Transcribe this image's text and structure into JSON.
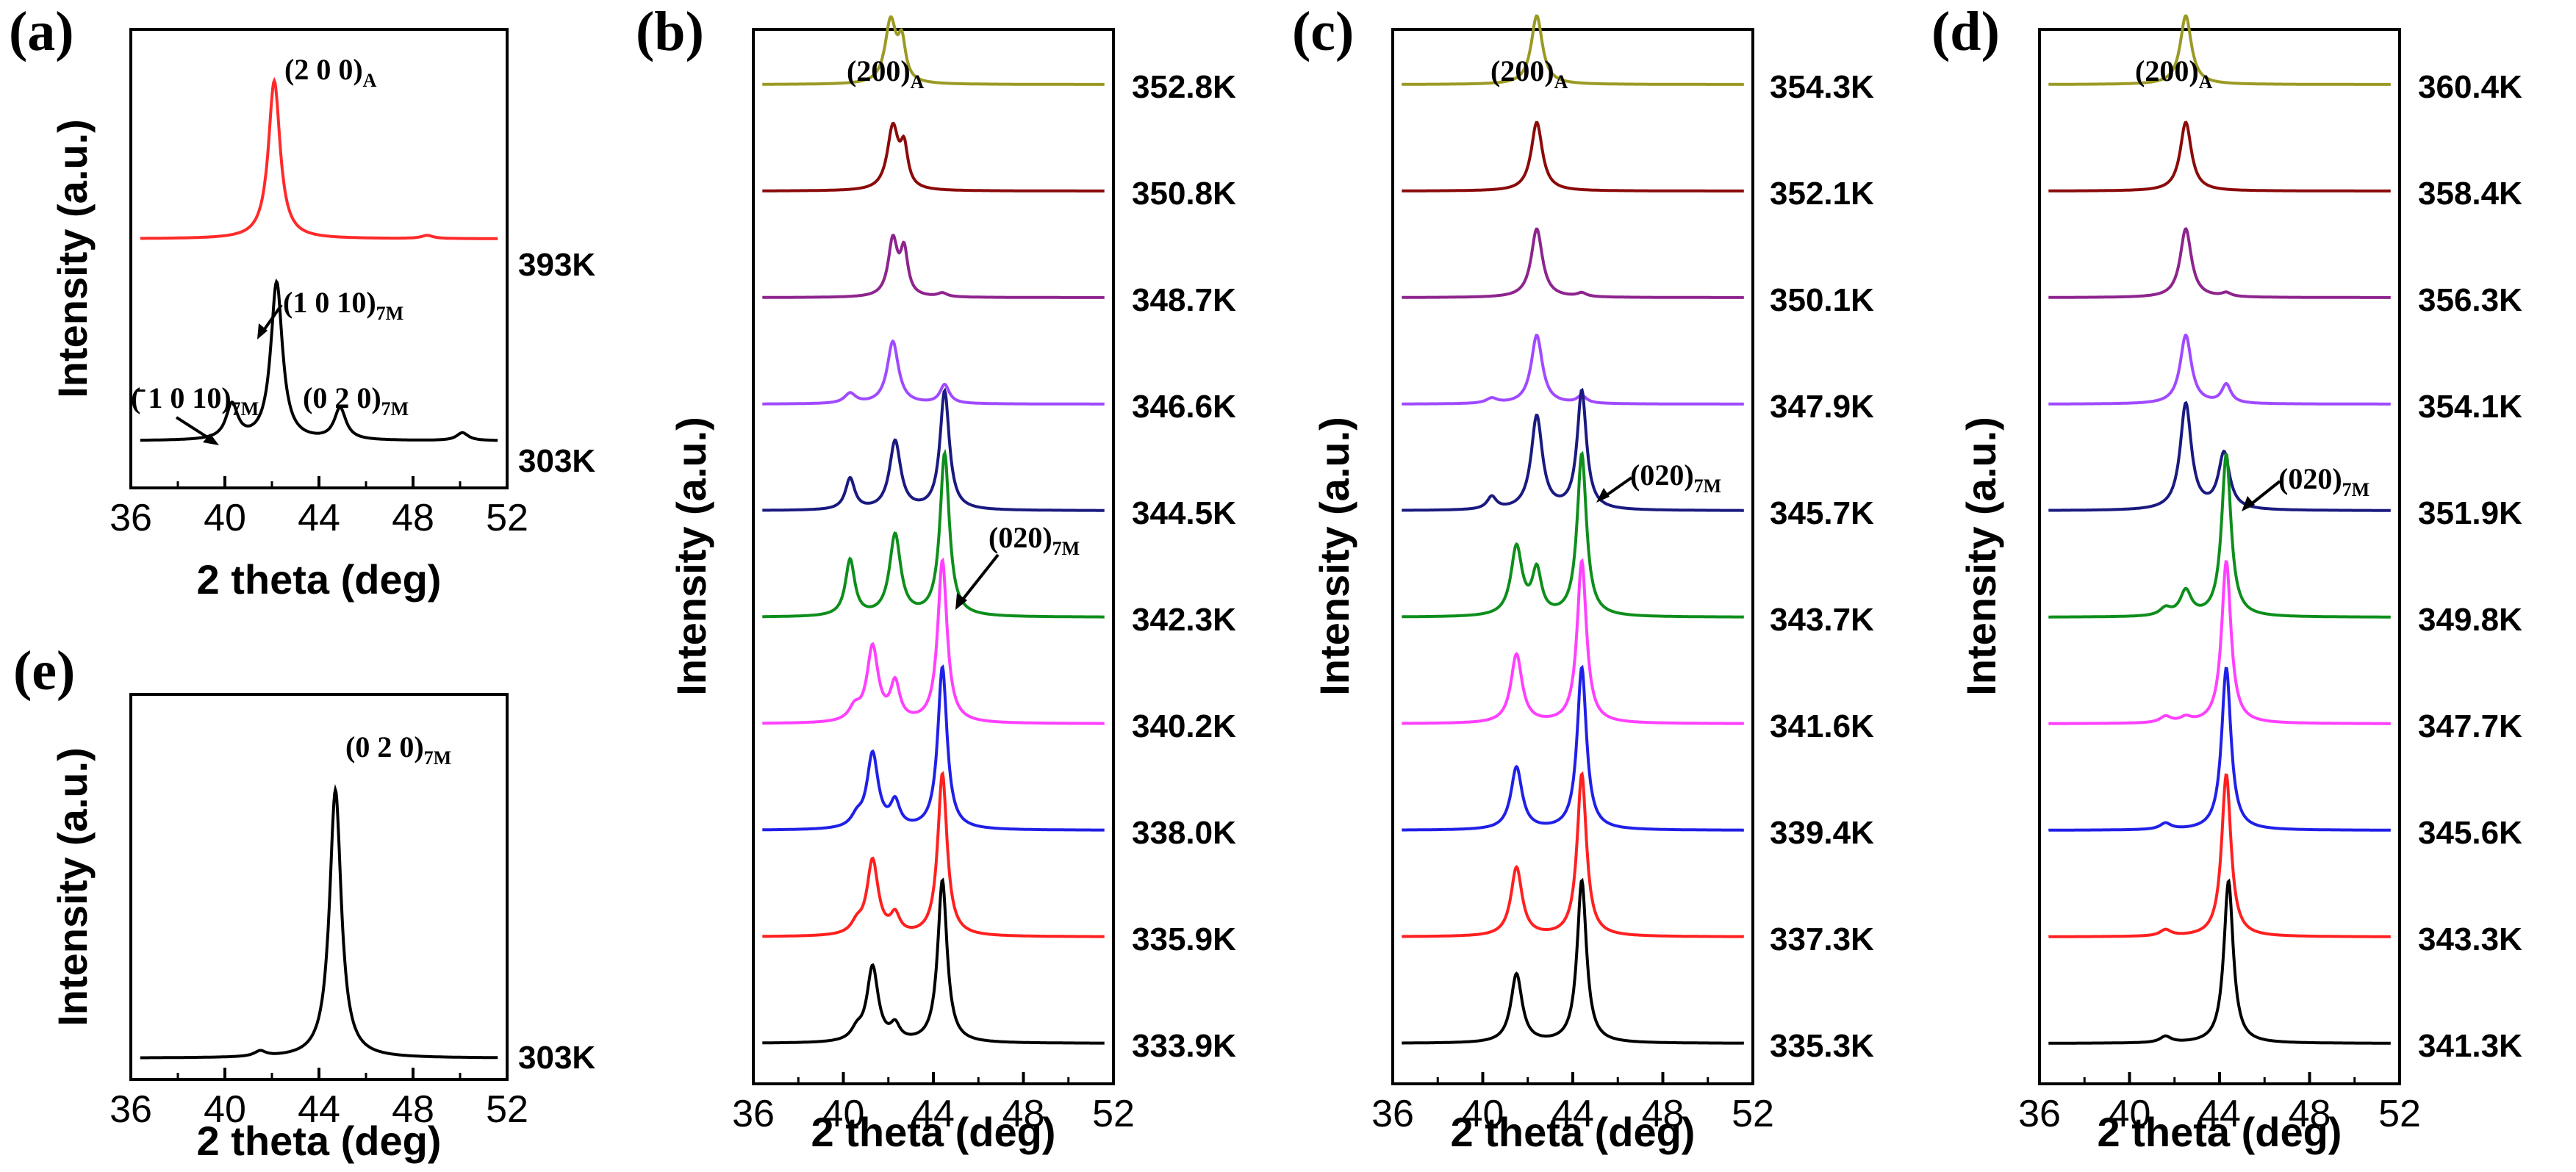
{
  "chart_data": [
    {
      "id": "a",
      "type": "line",
      "panel_label": "(a)",
      "xlabel": "2 theta (deg)",
      "ylabel": "Intensity (a.u.)",
      "xlim": [
        36,
        52
      ],
      "xticks": [
        "36",
        "40",
        "44",
        "48",
        "52"
      ],
      "series": [
        {
          "name": "393K",
          "color": "#ff2a2a",
          "peaks": [
            [
              42.1,
              1.0,
              0.3
            ],
            [
              48.6,
              0.02,
              0.3
            ]
          ]
        },
        {
          "name": "303K",
          "color": "#000000",
          "peaks": [
            [
              42.2,
              1.0,
              0.3
            ],
            [
              40.3,
              0.22,
              0.3
            ],
            [
              44.9,
              0.2,
              0.3
            ],
            [
              50.1,
              0.05,
              0.3
            ]
          ]
        }
      ],
      "annotations": [
        {
          "text": "(2 0 0)",
          "sub": "A"
        },
        {
          "text": "(1 0 10)",
          "sub": "7M"
        },
        {
          "text": "(̄ 1 0 10)",
          "sub": "7M"
        },
        {
          "text": "(0 2 0)",
          "sub": "7M"
        }
      ]
    },
    {
      "id": "e",
      "type": "line",
      "panel_label": "(e)",
      "xlabel": "2 theta (deg)",
      "ylabel": "Intensity (a.u.)",
      "xlim": [
        36,
        52
      ],
      "xticks": [
        "36",
        "40",
        "44",
        "48",
        "52"
      ],
      "series": [
        {
          "name": "303K",
          "color": "#000000",
          "peaks": [
            [
              44.7,
              1.0,
              0.3
            ],
            [
              41.5,
              0.02,
              0.3
            ]
          ]
        }
      ],
      "annotations": [
        {
          "text": "(0 2 0)",
          "sub": "7M"
        }
      ]
    },
    {
      "id": "b",
      "type": "line",
      "panel_label": "(b)",
      "xlabel": "2 theta (deg)",
      "ylabel": "Intensity (a.u.)",
      "xlim": [
        36,
        52
      ],
      "xticks": [
        "36",
        "40",
        "44",
        "48",
        "52"
      ],
      "series": [
        {
          "name": "352.8K",
          "color": "#9a9a24",
          "peaks": [
            [
              42.1,
              0.5,
              0.3
            ],
            [
              42.6,
              0.3,
              0.2
            ]
          ]
        },
        {
          "name": "350.8K",
          "color": "#8b0a0a",
          "peaks": [
            [
              42.2,
              0.5,
              0.3
            ],
            [
              42.7,
              0.3,
              0.2
            ]
          ]
        },
        {
          "name": "348.7K",
          "color": "#8e248e",
          "peaks": [
            [
              42.2,
              0.45,
              0.25
            ],
            [
              42.7,
              0.35,
              0.2
            ],
            [
              44.4,
              0.03,
              0.25
            ]
          ]
        },
        {
          "name": "346.6K",
          "color": "#a04aff",
          "peaks": [
            [
              42.2,
              0.5,
              0.3
            ],
            [
              40.3,
              0.08,
              0.3
            ],
            [
              44.5,
              0.15,
              0.25
            ]
          ]
        },
        {
          "name": "344.5K",
          "color": "#1a1a80",
          "peaks": [
            [
              40.3,
              0.25,
              0.25
            ],
            [
              42.3,
              0.55,
              0.3
            ],
            [
              44.5,
              0.95,
              0.25
            ]
          ]
        },
        {
          "name": "342.3K",
          "color": "#0e8e1c",
          "peaks": [
            [
              40.3,
              0.45,
              0.25
            ],
            [
              42.3,
              0.65,
              0.3
            ],
            [
              44.5,
              1.3,
              0.25
            ]
          ]
        },
        {
          "name": "340.2K",
          "color": "#ff40ff",
          "peaks": [
            [
              41.3,
              0.6,
              0.3
            ],
            [
              42.3,
              0.3,
              0.25
            ],
            [
              44.4,
              1.3,
              0.25
            ],
            [
              40.5,
              0.1,
              0.3
            ]
          ]
        },
        {
          "name": "338.0K",
          "color": "#2020e8",
          "peaks": [
            [
              41.3,
              0.6,
              0.3
            ],
            [
              42.3,
              0.2,
              0.25
            ],
            [
              44.4,
              1.3,
              0.25
            ],
            [
              40.6,
              0.08,
              0.3
            ]
          ]
        },
        {
          "name": "335.9K",
          "color": "#ff2020",
          "peaks": [
            [
              41.3,
              0.6,
              0.3
            ],
            [
              42.3,
              0.15,
              0.25
            ],
            [
              44.4,
              1.3,
              0.25
            ],
            [
              40.6,
              0.08,
              0.3
            ]
          ]
        },
        {
          "name": "333.9K",
          "color": "#000000",
          "peaks": [
            [
              41.3,
              0.6,
              0.3
            ],
            [
              42.3,
              0.12,
              0.25
            ],
            [
              44.4,
              1.3,
              0.25
            ],
            [
              40.6,
              0.08,
              0.3
            ]
          ]
        }
      ],
      "annotations": [
        {
          "text": "(200)",
          "sub": "A"
        },
        {
          "text": "(020)",
          "sub": "7M"
        }
      ]
    },
    {
      "id": "c",
      "type": "line",
      "panel_label": "(c)",
      "xlabel": "2 theta (deg)",
      "ylabel": "Intensity (a.u.)",
      "xlim": [
        36,
        52
      ],
      "xticks": [
        "36",
        "40",
        "44",
        "48",
        "52"
      ],
      "series": [
        {
          "name": "354.3K",
          "color": "#9a9a24",
          "peaks": [
            [
              42.4,
              0.55,
              0.3
            ]
          ]
        },
        {
          "name": "352.1K",
          "color": "#8b0a0a",
          "peaks": [
            [
              42.4,
              0.55,
              0.3
            ]
          ]
        },
        {
          "name": "350.1K",
          "color": "#8e248e",
          "peaks": [
            [
              42.4,
              0.55,
              0.3
            ],
            [
              44.4,
              0.03,
              0.25
            ]
          ]
        },
        {
          "name": "347.9K",
          "color": "#a04aff",
          "peaks": [
            [
              42.4,
              0.55,
              0.3
            ],
            [
              44.4,
              0.06,
              0.25
            ],
            [
              40.4,
              0.04,
              0.3
            ]
          ]
        },
        {
          "name": "345.7K",
          "color": "#1a1a80",
          "peaks": [
            [
              40.4,
              0.1,
              0.25
            ],
            [
              42.4,
              0.75,
              0.3
            ],
            [
              44.4,
              0.95,
              0.25
            ]
          ]
        },
        {
          "name": "343.7K",
          "color": "#0e8e1c",
          "peaks": [
            [
              41.5,
              0.55,
              0.3
            ],
            [
              42.4,
              0.35,
              0.25
            ],
            [
              44.4,
              1.3,
              0.25
            ]
          ]
        },
        {
          "name": "341.6K",
          "color": "#ff40ff",
          "peaks": [
            [
              41.5,
              0.55,
              0.3
            ],
            [
              44.4,
              1.3,
              0.25
            ]
          ]
        },
        {
          "name": "339.4K",
          "color": "#2020e8",
          "peaks": [
            [
              41.5,
              0.5,
              0.3
            ],
            [
              44.4,
              1.3,
              0.25
            ]
          ]
        },
        {
          "name": "337.3K",
          "color": "#ff2020",
          "peaks": [
            [
              41.5,
              0.55,
              0.3
            ],
            [
              44.4,
              1.3,
              0.25
            ]
          ]
        },
        {
          "name": "335.3K",
          "color": "#000000",
          "peaks": [
            [
              41.5,
              0.55,
              0.3
            ],
            [
              44.4,
              1.3,
              0.25
            ]
          ]
        }
      ],
      "annotations": [
        {
          "text": "(200)",
          "sub": "A"
        },
        {
          "text": "(020)",
          "sub": "7M"
        }
      ]
    },
    {
      "id": "d",
      "type": "line",
      "panel_label": "(d)",
      "xlabel": "2 theta (deg)",
      "ylabel": "Intensity (a.u.)",
      "xlim": [
        36,
        52
      ],
      "xticks": [
        "36",
        "40",
        "44",
        "48",
        "52"
      ],
      "series": [
        {
          "name": "360.4K",
          "color": "#9a9a24",
          "peaks": [
            [
              42.5,
              0.55,
              0.3
            ]
          ]
        },
        {
          "name": "358.4K",
          "color": "#8b0a0a",
          "peaks": [
            [
              42.5,
              0.55,
              0.3
            ]
          ]
        },
        {
          "name": "356.3K",
          "color": "#8e248e",
          "peaks": [
            [
              42.5,
              0.55,
              0.3
            ],
            [
              44.3,
              0.03,
              0.25
            ]
          ]
        },
        {
          "name": "354.1K",
          "color": "#a04aff",
          "peaks": [
            [
              42.5,
              0.55,
              0.3
            ],
            [
              44.3,
              0.15,
              0.25
            ]
          ]
        },
        {
          "name": "351.9K",
          "color": "#1a1a80",
          "peaks": [
            [
              42.5,
              0.85,
              0.3
            ],
            [
              44.2,
              0.45,
              0.3
            ]
          ]
        },
        {
          "name": "349.8K",
          "color": "#0e8e1c",
          "peaks": [
            [
              42.5,
              0.2,
              0.3
            ],
            [
              44.3,
              1.3,
              0.25
            ],
            [
              41.6,
              0.06,
              0.3
            ]
          ]
        },
        {
          "name": "347.7K",
          "color": "#ff40ff",
          "peaks": [
            [
              44.3,
              1.3,
              0.25
            ],
            [
              41.6,
              0.05,
              0.3
            ],
            [
              42.5,
              0.04,
              0.3
            ]
          ]
        },
        {
          "name": "345.6K",
          "color": "#2020e8",
          "peaks": [
            [
              44.3,
              1.3,
              0.25
            ],
            [
              41.6,
              0.05,
              0.3
            ]
          ]
        },
        {
          "name": "343.3K",
          "color": "#ff2020",
          "peaks": [
            [
              44.3,
              1.3,
              0.25
            ],
            [
              41.6,
              0.05,
              0.3
            ]
          ]
        },
        {
          "name": "341.3K",
          "color": "#000000",
          "peaks": [
            [
              44.4,
              1.3,
              0.25
            ],
            [
              41.6,
              0.05,
              0.3
            ]
          ]
        }
      ],
      "annotations": [
        {
          "text": "(200)",
          "sub": "A"
        },
        {
          "text": "(020)",
          "sub": "7M"
        }
      ]
    }
  ]
}
